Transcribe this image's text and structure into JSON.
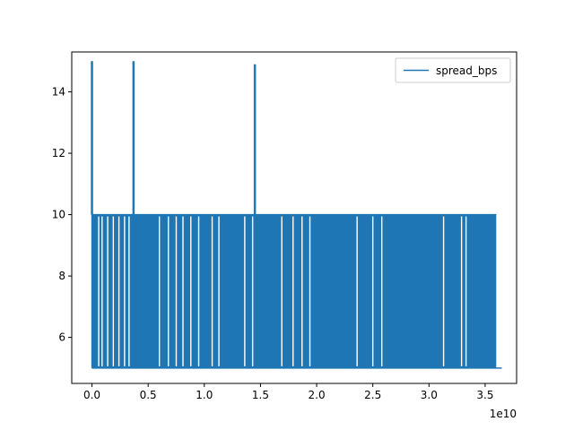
{
  "chart_data": {
    "type": "line",
    "title": "",
    "xlabel": "",
    "ylabel": "",
    "x_scale_note": "1e10",
    "xlim": [
      -0.18,
      3.78
    ],
    "ylim": [
      4.5,
      15.3
    ],
    "x_ticks": [
      0.0,
      0.5,
      1.0,
      1.5,
      2.0,
      2.5,
      3.0,
      3.5
    ],
    "x_tick_labels": [
      "0.0",
      "0.5",
      "1.0",
      "1.5",
      "2.0",
      "2.5",
      "3.0",
      "3.5"
    ],
    "y_ticks": [
      6,
      8,
      10,
      12,
      14
    ],
    "y_tick_labels": [
      "6",
      "8",
      "10",
      "12",
      "14"
    ],
    "grid": false,
    "legend_position": "upper right",
    "series": [
      {
        "name": "spread_bps",
        "color": "#1f77b4",
        "x_range": [
          0.0,
          3.6
        ],
        "band_low": 5.0,
        "band_high": 10.0,
        "spikes": [
          {
            "x": 0.0,
            "y": 15.0
          },
          {
            "x": 0.37,
            "y": 15.0
          },
          {
            "x": 1.45,
            "y": 14.9
          }
        ],
        "gaps_x": [
          0.06,
          0.09,
          0.14,
          0.19,
          0.24,
          0.29,
          0.33,
          0.6,
          0.68,
          0.75,
          0.81,
          0.88,
          0.95,
          1.07,
          1.13,
          1.36,
          1.43,
          1.69,
          1.79,
          1.87,
          1.94,
          2.36,
          2.5,
          2.58,
          3.13,
          3.29,
          3.33
        ]
      }
    ]
  }
}
